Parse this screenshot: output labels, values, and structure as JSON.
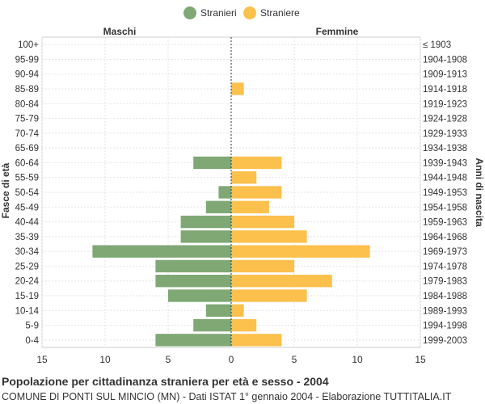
{
  "chart_data": {
    "type": "bar",
    "orientation": "horizontal-pyramid",
    "title": "Popolazione per cittadinanza straniera per età e sesso - 2004",
    "subtitle": "COMUNE DI PONTI SUL MINCIO (MN) - Dati ISTAT 1° gennaio 2004 - Elaborazione TUTTITALIA.IT",
    "left_header": "Maschi",
    "right_header": "Femmine",
    "ylabel_left": "Fasce di età",
    "ylabel_right": "Anni di nascita",
    "legend_position": "top-center",
    "grid": true,
    "xlim": [
      -15,
      15
    ],
    "x_ticks": [
      -15,
      -10,
      -5,
      0,
      5,
      10,
      15
    ],
    "x_tick_labels": [
      "15",
      "10",
      "5",
      "0",
      "5",
      "10",
      "15"
    ],
    "categories": [
      "100+",
      "95-99",
      "90-94",
      "85-89",
      "80-84",
      "75-79",
      "70-74",
      "65-69",
      "60-64",
      "55-59",
      "50-54",
      "45-49",
      "40-44",
      "35-39",
      "30-34",
      "25-29",
      "20-24",
      "15-19",
      "10-14",
      "5-9",
      "0-4"
    ],
    "birth_years": [
      "≤ 1903",
      "1904-1908",
      "1909-1913",
      "1914-1918",
      "1919-1923",
      "1924-1928",
      "1929-1933",
      "1934-1938",
      "1939-1943",
      "1944-1948",
      "1949-1953",
      "1954-1958",
      "1959-1963",
      "1964-1968",
      "1969-1973",
      "1974-1978",
      "1979-1983",
      "1984-1988",
      "1989-1993",
      "1994-1998",
      "1999-2003"
    ],
    "series": [
      {
        "name": "Stranieri",
        "side": "left",
        "color": "#7fa874",
        "values": [
          0,
          0,
          0,
          0,
          0,
          0,
          0,
          0,
          3,
          0,
          1,
          2,
          4,
          4,
          11,
          6,
          6,
          5,
          2,
          3,
          6
        ]
      },
      {
        "name": "Straniere",
        "side": "right",
        "color": "#fcc04c",
        "values": [
          0,
          0,
          0,
          1,
          0,
          0,
          0,
          0,
          4,
          2,
          4,
          3,
          5,
          6,
          11,
          5,
          8,
          6,
          1,
          2,
          4
        ]
      }
    ]
  }
}
